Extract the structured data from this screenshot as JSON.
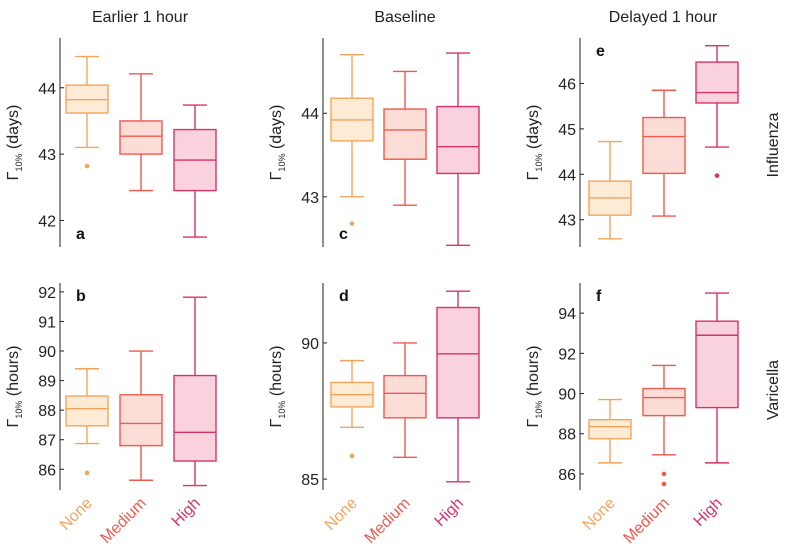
{
  "colors": {
    "none": "#f4a45a",
    "medium": "#ee5a4c",
    "high": "#d6336c",
    "none_fill": "#fdebd6",
    "medium_fill": "#fcdcd6",
    "high_fill": "#f9d2dd",
    "axis": "#222222"
  },
  "column_titles": [
    "Earlier 1 hour",
    "Baseline",
    "Delayed 1 hour"
  ],
  "row_labels": [
    "Influenza",
    "Varicella"
  ],
  "categories": [
    "None",
    "Medium",
    "High"
  ],
  "chart_data": [
    {
      "type": "box",
      "panel": "a",
      "row": 0,
      "col": 0,
      "ylabel": "Γ10% (days)",
      "ylim": [
        41.6,
        44.75
      ],
      "yticks": [
        42,
        43,
        44
      ],
      "tick_labels": [
        "42",
        "43",
        "44"
      ],
      "series": [
        {
          "name": "None",
          "whisker_low": 43.1,
          "q1": 43.62,
          "median": 43.82,
          "q3": 44.04,
          "whisker_high": 44.47,
          "outliers": [
            42.82
          ]
        },
        {
          "name": "Medium",
          "whisker_low": 42.45,
          "q1": 43.0,
          "median": 43.27,
          "q3": 43.5,
          "whisker_high": 44.21,
          "outliers": []
        },
        {
          "name": "High",
          "whisker_low": 41.75,
          "q1": 42.45,
          "median": 42.91,
          "q3": 43.37,
          "whisker_high": 43.74,
          "outliers": []
        }
      ]
    },
    {
      "type": "box",
      "panel": "c",
      "row": 0,
      "col": 1,
      "ylabel": "Γ10% (days)",
      "ylim": [
        42.4,
        44.9
      ],
      "yticks": [
        43,
        44
      ],
      "tick_labels": [
        "43",
        "44"
      ],
      "series": [
        {
          "name": "None",
          "whisker_low": 43.0,
          "q1": 43.67,
          "median": 43.92,
          "q3": 44.18,
          "whisker_high": 44.7,
          "outliers": [
            42.68
          ]
        },
        {
          "name": "Medium",
          "whisker_low": 42.9,
          "q1": 43.45,
          "median": 43.8,
          "q3": 44.05,
          "whisker_high": 44.5,
          "outliers": []
        },
        {
          "name": "High",
          "whisker_low": 42.42,
          "q1": 43.28,
          "median": 43.6,
          "q3": 44.08,
          "whisker_high": 44.72,
          "outliers": []
        }
      ]
    },
    {
      "type": "box",
      "panel": "e",
      "row": 0,
      "col": 2,
      "ylabel": "Γ10% (days)",
      "ylim": [
        42.4,
        47.0
      ],
      "yticks": [
        43,
        44,
        45,
        46
      ],
      "tick_labels": [
        "43",
        "44",
        "45",
        "46"
      ],
      "series": [
        {
          "name": "None",
          "whisker_low": 42.58,
          "q1": 43.1,
          "median": 43.48,
          "q3": 43.85,
          "whisker_high": 44.72,
          "outliers": []
        },
        {
          "name": "Medium",
          "whisker_low": 43.08,
          "q1": 44.02,
          "median": 44.83,
          "q3": 45.25,
          "whisker_high": 45.85,
          "outliers": []
        },
        {
          "name": "High",
          "whisker_low": 44.6,
          "q1": 45.57,
          "median": 45.8,
          "q3": 46.47,
          "whisker_high": 46.83,
          "outliers": [
            43.97
          ]
        }
      ]
    },
    {
      "type": "box",
      "panel": "b",
      "row": 1,
      "col": 0,
      "ylabel": "Γ10% (hours)",
      "ylim": [
        85.3,
        92.3
      ],
      "yticks": [
        86,
        87,
        88,
        89,
        90,
        91,
        92
      ],
      "tick_labels": [
        "86",
        "87",
        "88",
        "89",
        "90",
        "91",
        "92"
      ],
      "series": [
        {
          "name": "None",
          "whisker_low": 86.87,
          "q1": 87.47,
          "median": 88.05,
          "q3": 88.48,
          "whisker_high": 89.4,
          "outliers": [
            85.88
          ]
        },
        {
          "name": "Medium",
          "whisker_low": 85.63,
          "q1": 86.8,
          "median": 87.55,
          "q3": 88.52,
          "whisker_high": 90.0,
          "outliers": []
        },
        {
          "name": "High",
          "whisker_low": 85.45,
          "q1": 86.28,
          "median": 87.25,
          "q3": 89.17,
          "whisker_high": 91.82,
          "outliers": []
        }
      ]
    },
    {
      "type": "box",
      "panel": "d",
      "row": 1,
      "col": 1,
      "ylabel": "Γ10% (hours)",
      "ylim": [
        84.6,
        92.2
      ],
      "yticks": [
        85,
        90
      ],
      "tick_labels": [
        "85",
        "90"
      ],
      "series": [
        {
          "name": "None",
          "whisker_low": 86.9,
          "q1": 87.65,
          "median": 88.1,
          "q3": 88.55,
          "whisker_high": 89.35,
          "outliers": [
            85.85
          ]
        },
        {
          "name": "Medium",
          "whisker_low": 85.8,
          "q1": 87.25,
          "median": 88.15,
          "q3": 88.8,
          "whisker_high": 90.0,
          "outliers": []
        },
        {
          "name": "High",
          "whisker_low": 84.9,
          "q1": 87.25,
          "median": 89.6,
          "q3": 91.3,
          "whisker_high": 91.9,
          "outliers": []
        }
      ]
    },
    {
      "type": "box",
      "panel": "f",
      "row": 1,
      "col": 2,
      "ylabel": "Γ10% (hours)",
      "ylim": [
        85.2,
        95.5
      ],
      "yticks": [
        86,
        88,
        90,
        92,
        94
      ],
      "tick_labels": [
        "86",
        "88",
        "90",
        "92",
        "94"
      ],
      "series": [
        {
          "name": "None",
          "whisker_low": 86.55,
          "q1": 87.75,
          "median": 88.35,
          "q3": 88.7,
          "whisker_high": 89.7,
          "outliers": []
        },
        {
          "name": "Medium",
          "whisker_low": 86.95,
          "q1": 88.9,
          "median": 89.8,
          "q3": 90.25,
          "whisker_high": 91.4,
          "outliers": [
            85.5,
            86.0
          ]
        },
        {
          "name": "High",
          "whisker_low": 86.55,
          "q1": 89.3,
          "median": 92.9,
          "q3": 93.6,
          "whisker_high": 95.0,
          "outliers": []
        }
      ]
    }
  ]
}
